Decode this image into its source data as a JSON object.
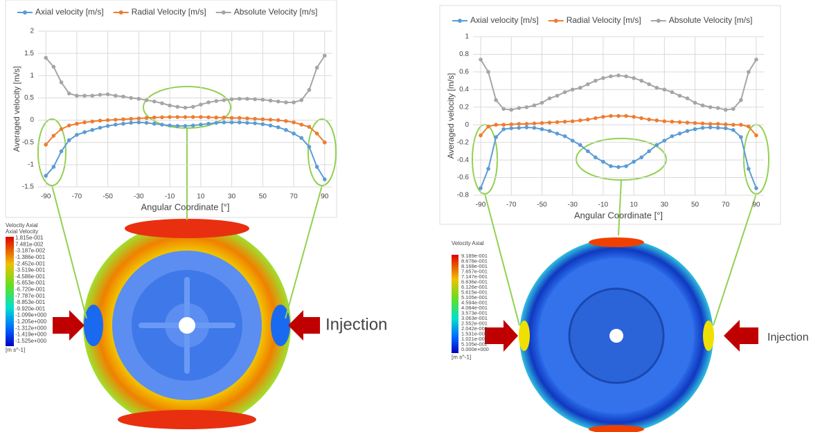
{
  "chart_data": [
    {
      "type": "line",
      "x_label": "Angular Coordinate [°]",
      "y_label": "Averaged velocity [m/s]",
      "x": [
        -90,
        -85,
        -80,
        -75,
        -70,
        -65,
        -60,
        -55,
        -50,
        -45,
        -40,
        -35,
        -30,
        -25,
        -20,
        -15,
        -10,
        -5,
        0,
        5,
        10,
        15,
        20,
        25,
        30,
        35,
        40,
        45,
        50,
        55,
        60,
        65,
        70,
        75,
        80,
        85,
        90
      ],
      "xlim": [
        -95,
        95
      ],
      "xticks": [
        -90,
        -70,
        -50,
        -30,
        -10,
        10,
        30,
        50,
        70,
        90
      ],
      "ylim": [
        -1.5,
        2
      ],
      "yticks": [
        -1.5,
        -1,
        -0.5,
        0,
        0.5,
        1,
        1.5,
        2
      ],
      "grid": true,
      "legend": "top",
      "series": [
        {
          "name": "Axial velocity [m/s]",
          "color": "#5b9bd5",
          "values": [
            -1.25,
            -1.05,
            -0.7,
            -0.45,
            -0.33,
            -0.27,
            -0.22,
            -0.17,
            -0.13,
            -0.1,
            -0.08,
            -0.06,
            -0.05,
            -0.06,
            -0.08,
            -0.1,
            -0.12,
            -0.13,
            -0.13,
            -0.12,
            -0.1,
            -0.08,
            -0.06,
            -0.05,
            -0.05,
            -0.05,
            -0.06,
            -0.07,
            -0.09,
            -0.12,
            -0.16,
            -0.22,
            -0.3,
            -0.4,
            -0.6,
            -1.05,
            -1.33
          ]
        },
        {
          "name": "Radial Velocity [m/s]",
          "color": "#ed7d31",
          "values": [
            -0.55,
            -0.35,
            -0.2,
            -0.12,
            -0.08,
            -0.05,
            -0.03,
            -0.01,
            0,
            0.01,
            0.02,
            0.03,
            0.04,
            0.05,
            0.06,
            0.065,
            0.07,
            0.07,
            0.07,
            0.07,
            0.07,
            0.065,
            0.06,
            0.06,
            0.05,
            0.05,
            0.04,
            0.03,
            0.02,
            0.01,
            0,
            -0.02,
            -0.05,
            -0.1,
            -0.15,
            -0.3,
            -0.5
          ]
        },
        {
          "name": "Absolute Velocity [m/s]",
          "color": "#a5a5a5",
          "values": [
            1.4,
            1.2,
            0.85,
            0.6,
            0.55,
            0.55,
            0.55,
            0.57,
            0.58,
            0.55,
            0.53,
            0.5,
            0.48,
            0.45,
            0.42,
            0.38,
            0.33,
            0.3,
            0.28,
            0.3,
            0.35,
            0.4,
            0.43,
            0.45,
            0.47,
            0.48,
            0.48,
            0.47,
            0.46,
            0.44,
            0.42,
            0.4,
            0.4,
            0.45,
            0.68,
            1.18,
            1.45
          ]
        }
      ]
    },
    {
      "type": "line",
      "x_label": "Angular Coordinate [°]",
      "y_label": "Averaged velocity [m/s]",
      "x": [
        -90,
        -85,
        -80,
        -75,
        -70,
        -65,
        -60,
        -55,
        -50,
        -45,
        -40,
        -35,
        -30,
        -25,
        -20,
        -15,
        -10,
        -5,
        0,
        5,
        10,
        15,
        20,
        25,
        30,
        35,
        40,
        45,
        50,
        55,
        60,
        65,
        70,
        75,
        80,
        85,
        90
      ],
      "xlim": [
        -95,
        95
      ],
      "xticks": [
        -90,
        -70,
        -50,
        -30,
        -10,
        10,
        30,
        50,
        70,
        90
      ],
      "ylim": [
        -0.8,
        1
      ],
      "yticks": [
        -0.8,
        -0.6,
        -0.4,
        -0.2,
        0,
        0.2,
        0.4,
        0.6,
        0.8,
        1
      ],
      "grid": true,
      "legend": "top",
      "series": [
        {
          "name": "Axial velocity [m/s]",
          "color": "#5b9bd5",
          "values": [
            -0.72,
            -0.5,
            -0.14,
            -0.05,
            -0.04,
            -0.035,
            -0.03,
            -0.035,
            -0.05,
            -0.07,
            -0.1,
            -0.13,
            -0.18,
            -0.23,
            -0.3,
            -0.37,
            -0.42,
            -0.47,
            -0.48,
            -0.47,
            -0.42,
            -0.37,
            -0.3,
            -0.23,
            -0.18,
            -0.13,
            -0.1,
            -0.07,
            -0.05,
            -0.035,
            -0.03,
            -0.035,
            -0.04,
            -0.06,
            -0.14,
            -0.5,
            -0.72
          ]
        },
        {
          "name": "Radial Velocity [m/s]",
          "color": "#ed7d31",
          "values": [
            -0.12,
            -0.02,
            0,
            0,
            0.005,
            0.01,
            0.01,
            0.015,
            0.02,
            0.025,
            0.03,
            0.035,
            0.04,
            0.05,
            0.06,
            0.075,
            0.09,
            0.1,
            0.1,
            0.1,
            0.09,
            0.075,
            0.06,
            0.05,
            0.04,
            0.035,
            0.03,
            0.025,
            0.02,
            0.015,
            0.01,
            0.01,
            0.005,
            0,
            0,
            -0.02,
            -0.12
          ]
        },
        {
          "name": "Absolute Velocity [m/s]",
          "color": "#a5a5a5",
          "values": [
            0.74,
            0.6,
            0.28,
            0.18,
            0.17,
            0.19,
            0.2,
            0.22,
            0.25,
            0.3,
            0.33,
            0.37,
            0.4,
            0.42,
            0.46,
            0.5,
            0.53,
            0.55,
            0.56,
            0.55,
            0.53,
            0.5,
            0.46,
            0.42,
            0.4,
            0.37,
            0.33,
            0.3,
            0.25,
            0.22,
            0.2,
            0.19,
            0.17,
            0.18,
            0.28,
            0.6,
            0.74
          ]
        }
      ]
    }
  ],
  "contours": [
    {
      "title": "Velocity Axial",
      "subtitle": "Axial Velocity",
      "unit": "[m s^-1]",
      "annotation": "Injection",
      "labels": [
        "1.815e-001",
        "7.481e-002",
        "-3.187e-002",
        "-1.386e-001",
        "-2.452e-001",
        "-3.519e-001",
        "-4.586e-001",
        "-5.653e-001",
        "-6.720e-001",
        "-7.787e-001",
        "-8.853e-001",
        "-9.920e-001",
        "-1.099e+000",
        "-1.205e+000",
        "-1.312e+000",
        "-1.419e+000",
        "-1.525e+000"
      ]
    },
    {
      "title": "Velocity Axial",
      "unit": "[m s^-1]",
      "annotation": "Injection",
      "labels": [
        "9.189e-001",
        "8.678e-001",
        "8.168e-001",
        "7.657e-001",
        "7.147e-001",
        "6.636e-001",
        "6.126e-001",
        "5.615e-001",
        "5.105e-001",
        "4.594e-001",
        "4.084e-001",
        "3.573e-001",
        "3.063e-001",
        "2.552e-001",
        "2.042e-001",
        "1.531e-001",
        "1.021e-001",
        "5.105e-002",
        "0.000e+000"
      ]
    }
  ]
}
